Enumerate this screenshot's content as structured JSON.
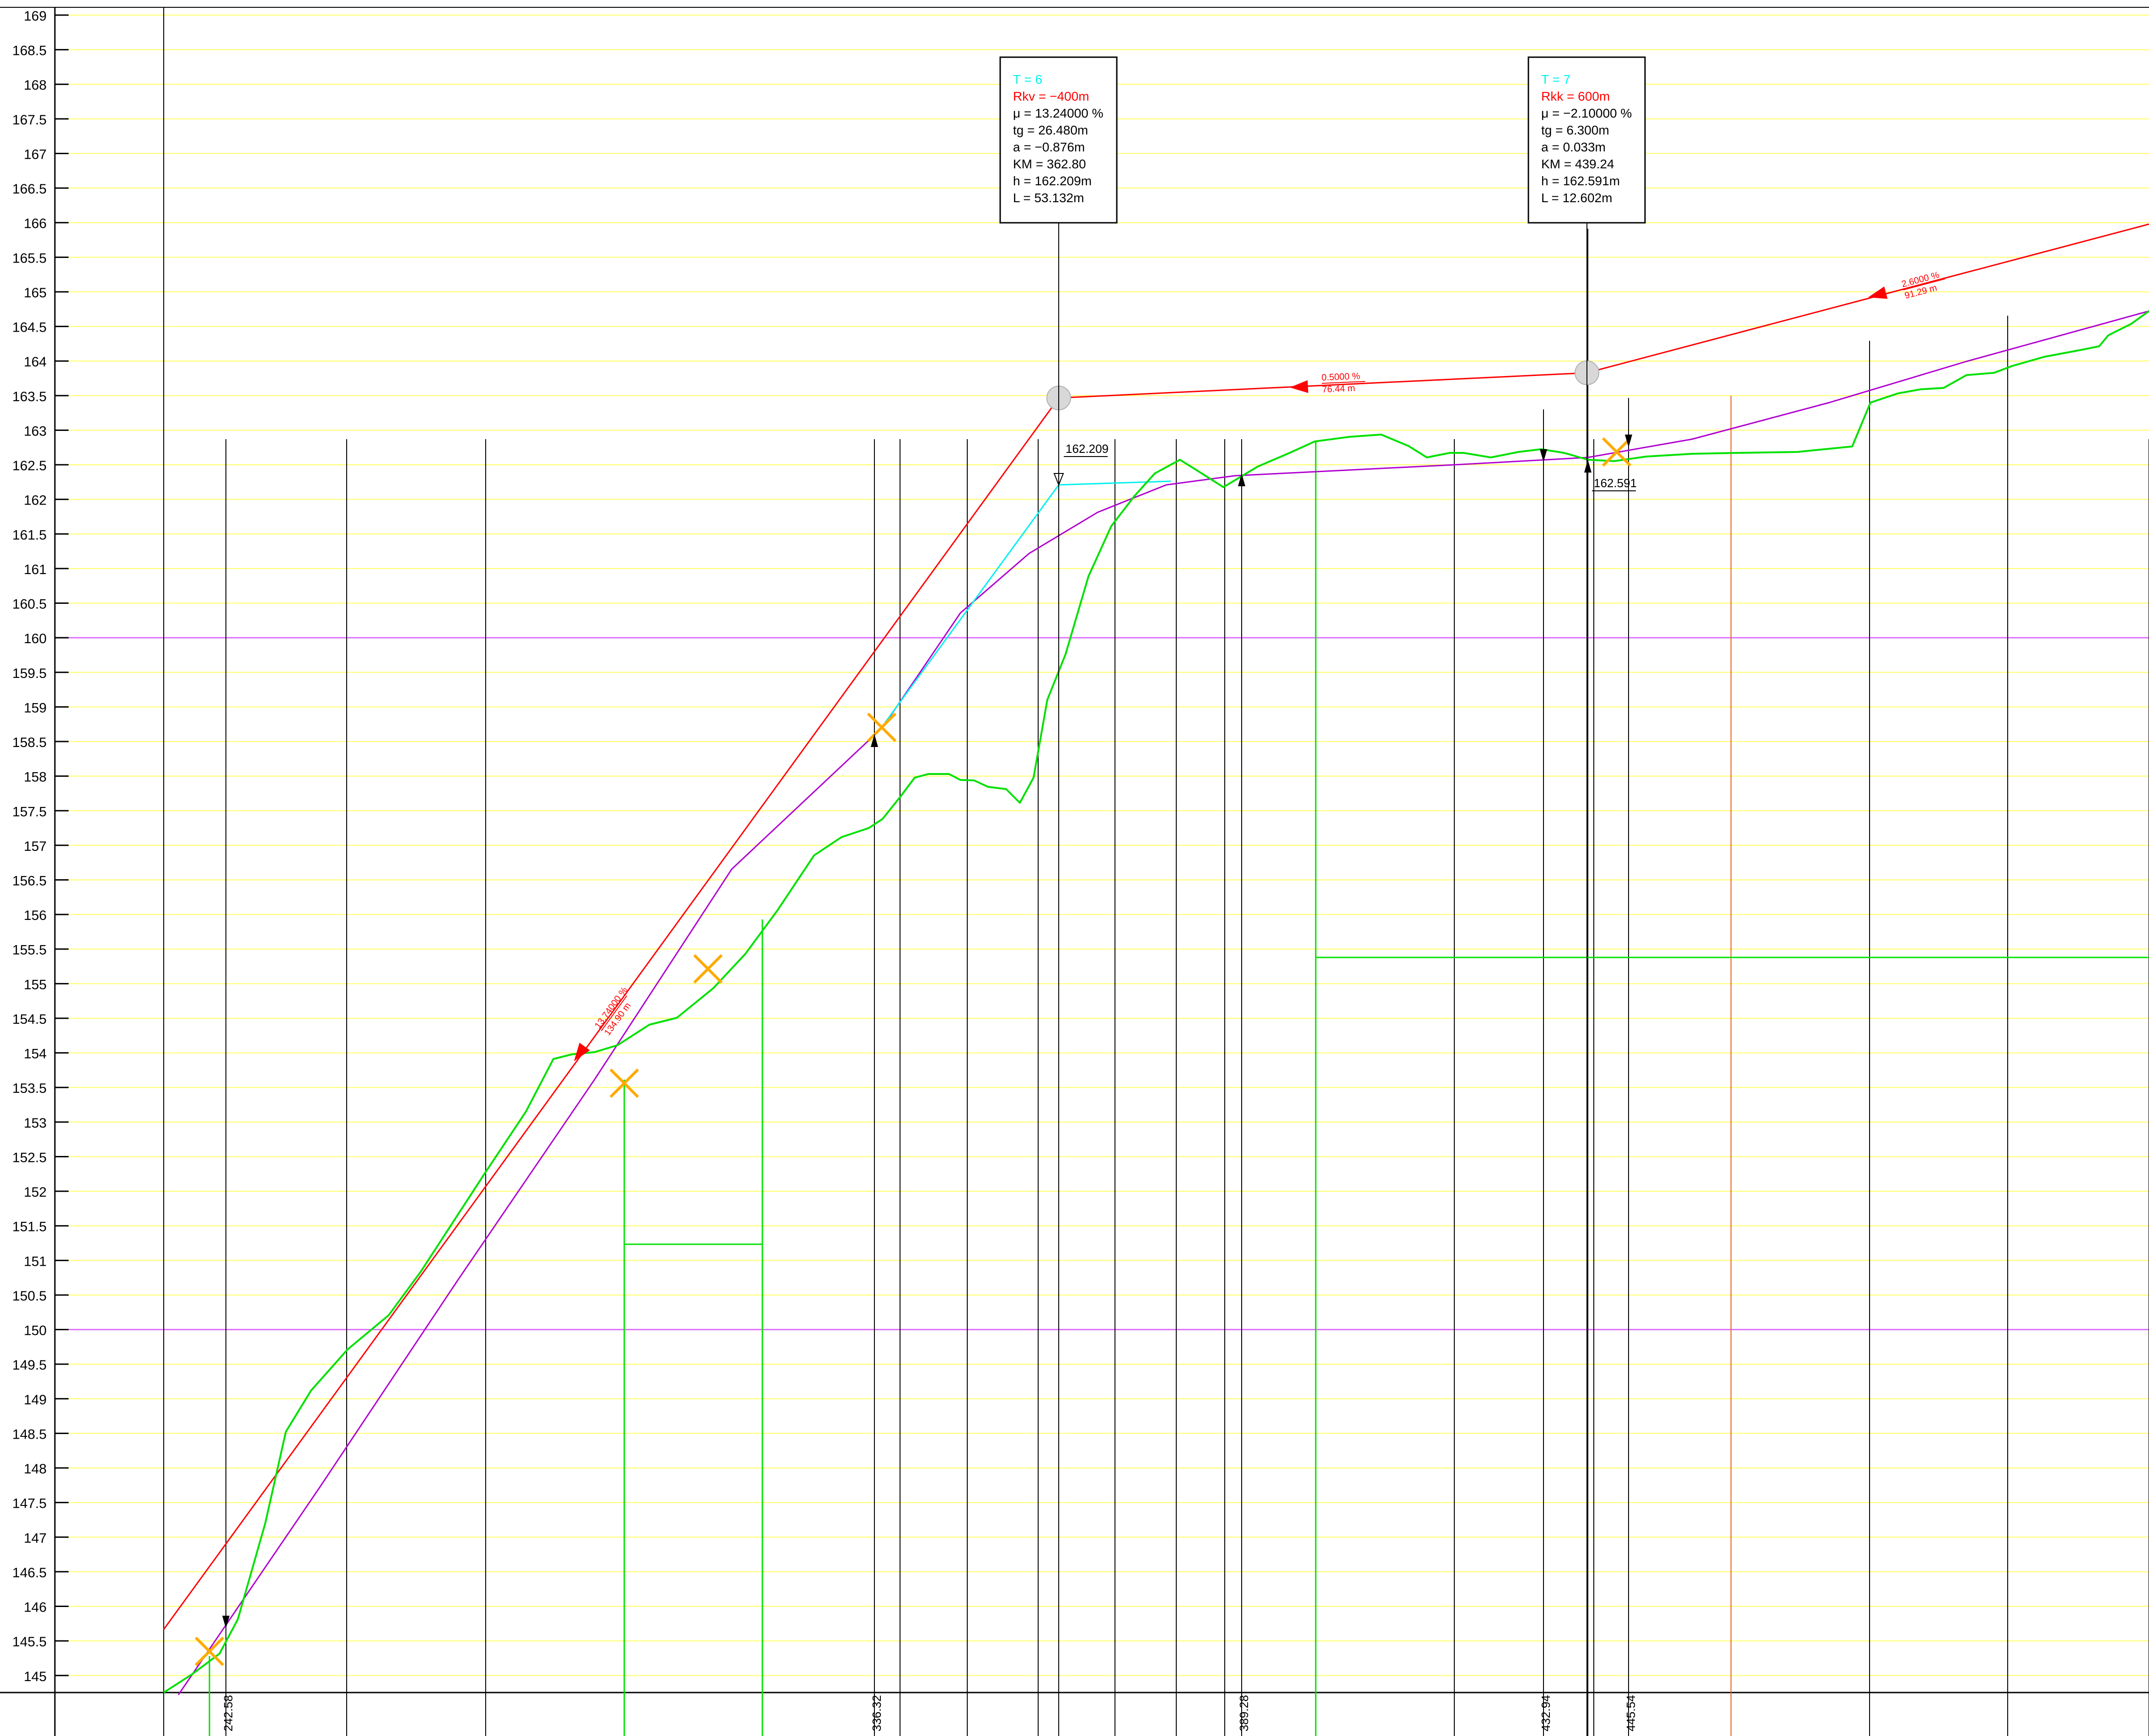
{
  "elevation_ticks": [
    "169",
    "168.5",
    "168",
    "167.5",
    "167",
    "166.5",
    "166",
    "165.5",
    "165",
    "164.5",
    "164",
    "163.5",
    "163",
    "162.5",
    "162",
    "161.5",
    "161",
    "160.5",
    "160",
    "159.5",
    "159",
    "158.5",
    "158",
    "157.5",
    "157",
    "156.5",
    "156",
    "155.5",
    "155",
    "154.5",
    "154",
    "153.5",
    "153",
    "152.5",
    "152",
    "151.5",
    "151",
    "150.5",
    "150",
    "149.5",
    "149",
    "148.5",
    "148",
    "147.5",
    "147",
    "146.5",
    "146",
    "145.5",
    "145"
  ],
  "station_labels": [
    "242.58",
    "336.32",
    "389.28",
    "432.94",
    "445.54"
  ],
  "curve_boxes": [
    {
      "t": "T = 6",
      "r": "Rkv = −400m",
      "mu": "μ = 13.24000 %",
      "tg": "tg = 26.480m",
      "a": "a = −0.876m",
      "km": "KM = 362.80",
      "h": "h = 162.209m",
      "l": "L = 53.132m"
    },
    {
      "t": "T = 7",
      "r": "Rkk = 600m",
      "mu": "μ = −2.10000 %",
      "tg": "tg = 6.300m",
      "a": "a = 0.033m",
      "km": "KM = 439.24",
      "h": "h = 162.591m",
      "l": "L = 12.602m"
    }
  ],
  "grade_labels": [
    {
      "pct": "13.74000 %",
      "len": "134.90 m"
    },
    {
      "pct": "0.5000 %",
      "len": "76.44 m"
    },
    {
      "pct": "2.6000 %",
      "len": "91.29 m"
    }
  ],
  "height_labels": [
    "162.209",
    "162.591"
  ],
  "colors": {
    "grid": "#ffff66",
    "grid_major": "#e070ff",
    "grade": "#ff0000",
    "design": "#b000d0",
    "terrain": "#00e000",
    "aux": "#00f0f0",
    "marker": "#ffaa00",
    "station": "#000000",
    "orange": "#e06020"
  },
  "chart_data": {
    "type": "line",
    "ylim": [
      145,
      169
    ],
    "series": [
      {
        "name": "",
        "points": [
          [
            0,
            145
          ],
          [
            1,
            146
          ],
          [
            2,
            147.5
          ]
        ]
      }
    ]
  }
}
